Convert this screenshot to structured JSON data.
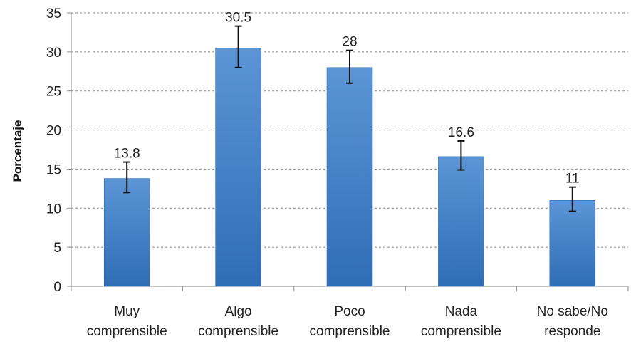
{
  "chart_data": {
    "type": "bar",
    "title": "",
    "xlabel": "",
    "ylabel": "Porcentaje",
    "ylim": [
      0,
      35
    ],
    "yticks": [
      0,
      5,
      10,
      15,
      20,
      25,
      30,
      35
    ],
    "grid": true,
    "legend": "none",
    "categories": [
      [
        "Muy",
        "comprensible"
      ],
      [
        "Algo",
        "comprensible"
      ],
      [
        "Poco",
        "comprensible"
      ],
      [
        "Nada",
        "comprensible"
      ],
      [
        "No sabe/No",
        "responde"
      ]
    ],
    "values": [
      13.8,
      30.5,
      28,
      16.6,
      11
    ],
    "data_labels": [
      "13.8",
      "30.5",
      "28",
      "16.6",
      "11"
    ],
    "error_low": [
      12.0,
      28.0,
      26.0,
      14.9,
      9.6
    ],
    "error_high": [
      15.9,
      33.3,
      30.2,
      18.6,
      12.7
    ],
    "colors": {
      "bar_top": "#5b95d6",
      "bar_bottom": "#2f6db5",
      "bar_edge": "#2a5f9e",
      "grid": "#8a8a8a",
      "axis": "#8a8a8a",
      "error": "#111111"
    }
  }
}
